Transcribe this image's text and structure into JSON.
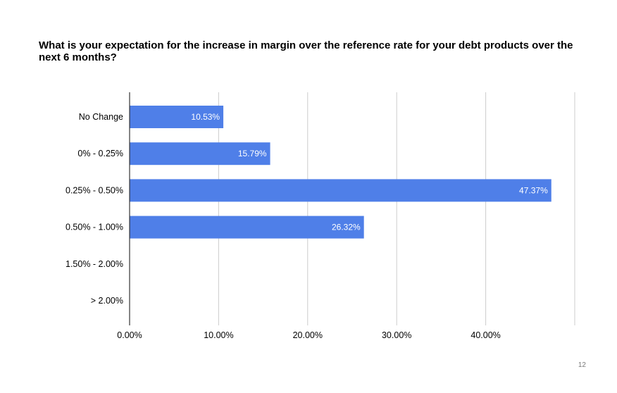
{
  "page_number": "12",
  "colors": {
    "bar": "#4f7fe8",
    "grid": "#cccccc",
    "axis": "#333333",
    "label_text": "#000000",
    "bar_label_text": "#ffffff"
  },
  "chart_data": {
    "type": "bar",
    "orientation": "horizontal",
    "title": "What is your expectation for the increase in margin over the reference rate for your debt products over the next 6 months?",
    "xlabel": "",
    "ylabel": "",
    "categories": [
      "No Change",
      "0% - 0.25%",
      "0.25% - 0.50%",
      "0.50% - 1.00%",
      "1.50% - 2.00%",
      "> 2.00%"
    ],
    "values": [
      10.53,
      15.79,
      47.37,
      26.32,
      null,
      null
    ],
    "data_labels": [
      "10.53%",
      "15.79%",
      "47.37%",
      "26.32%",
      "",
      ""
    ],
    "xlim": [
      0,
      50
    ],
    "x_ticks": [
      0,
      10,
      20,
      30,
      40,
      50
    ],
    "x_tick_labels": [
      "0.00%",
      "10.00%",
      "20.00%",
      "30.00%",
      "40.00%",
      ""
    ],
    "grid": true,
    "legend": "none"
  }
}
